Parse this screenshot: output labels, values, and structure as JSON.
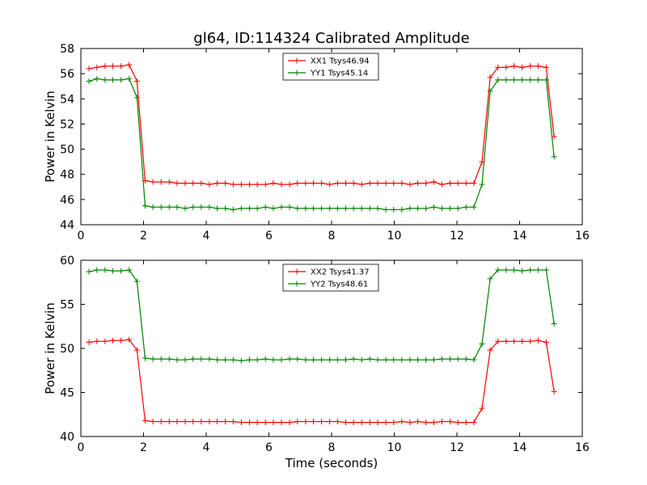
{
  "chart_data": [
    {
      "type": "line",
      "title": "gl64, ID:114324 Calibrated Amplitude",
      "xlabel": "",
      "ylabel": "Power in Kelvin",
      "xlim": [
        0,
        16
      ],
      "ylim": [
        44,
        58
      ],
      "xticks": [
        "0",
        "2",
        "4",
        "6",
        "8",
        "10",
        "12",
        "14",
        "16"
      ],
      "yticks": [
        "44",
        "46",
        "48",
        "50",
        "52",
        "54",
        "56",
        "58"
      ],
      "grid": false,
      "legend_position": "top-center",
      "x": [
        0.26,
        0.51,
        0.77,
        1.02,
        1.28,
        1.54,
        1.79,
        2.05,
        2.3,
        2.56,
        2.82,
        3.07,
        3.33,
        3.58,
        3.84,
        4.1,
        4.35,
        4.61,
        4.86,
        5.12,
        5.38,
        5.63,
        5.89,
        6.14,
        6.4,
        6.66,
        6.91,
        7.17,
        7.42,
        7.68,
        7.94,
        8.19,
        8.45,
        8.7,
        8.96,
        9.22,
        9.47,
        9.73,
        9.98,
        10.24,
        10.5,
        10.75,
        11.01,
        11.26,
        11.52,
        11.78,
        12.03,
        12.29,
        12.54,
        12.8,
        13.06,
        13.31,
        13.57,
        13.82,
        14.08,
        14.34,
        14.59,
        14.85,
        15.1
      ],
      "series": [
        {
          "name": "XX1 Tsys46.94",
          "color": "#ff0000",
          "values": [
            56.4,
            56.5,
            56.6,
            56.6,
            56.6,
            56.7,
            55.4,
            47.5,
            47.4,
            47.4,
            47.4,
            47.3,
            47.3,
            47.3,
            47.3,
            47.2,
            47.3,
            47.3,
            47.2,
            47.2,
            47.2,
            47.2,
            47.2,
            47.3,
            47.2,
            47.2,
            47.3,
            47.3,
            47.3,
            47.3,
            47.2,
            47.3,
            47.3,
            47.3,
            47.2,
            47.3,
            47.3,
            47.3,
            47.3,
            47.3,
            47.2,
            47.3,
            47.3,
            47.4,
            47.2,
            47.3,
            47.3,
            47.3,
            47.3,
            49.0,
            55.7,
            56.5,
            56.5,
            56.6,
            56.5,
            56.6,
            56.6,
            56.5,
            51.0
          ]
        },
        {
          "name": "YY1 Tsys45.14",
          "color": "#008000",
          "values": [
            55.4,
            55.6,
            55.5,
            55.5,
            55.5,
            55.6,
            54.1,
            45.5,
            45.4,
            45.4,
            45.4,
            45.4,
            45.3,
            45.4,
            45.4,
            45.4,
            45.3,
            45.3,
            45.2,
            45.3,
            45.3,
            45.3,
            45.4,
            45.3,
            45.4,
            45.4,
            45.3,
            45.3,
            45.3,
            45.3,
            45.3,
            45.3,
            45.3,
            45.3,
            45.3,
            45.3,
            45.3,
            45.2,
            45.2,
            45.2,
            45.3,
            45.3,
            45.3,
            45.4,
            45.3,
            45.3,
            45.3,
            45.4,
            45.4,
            47.2,
            54.6,
            55.5,
            55.5,
            55.5,
            55.5,
            55.5,
            55.5,
            55.5,
            49.4
          ]
        }
      ]
    },
    {
      "type": "line",
      "title": "",
      "xlabel": "Time (seconds)",
      "ylabel": "Power in Kelvin",
      "xlim": [
        0,
        16
      ],
      "ylim": [
        40,
        60
      ],
      "xticks": [
        "0",
        "2",
        "4",
        "6",
        "8",
        "10",
        "12",
        "14",
        "16"
      ],
      "yticks": [
        "40",
        "45",
        "50",
        "55",
        "60"
      ],
      "grid": false,
      "legend_position": "top-center",
      "x": [
        0.26,
        0.51,
        0.77,
        1.02,
        1.28,
        1.54,
        1.79,
        2.05,
        2.3,
        2.56,
        2.82,
        3.07,
        3.33,
        3.58,
        3.84,
        4.1,
        4.35,
        4.61,
        4.86,
        5.12,
        5.38,
        5.63,
        5.89,
        6.14,
        6.4,
        6.66,
        6.91,
        7.17,
        7.42,
        7.68,
        7.94,
        8.19,
        8.45,
        8.7,
        8.96,
        9.22,
        9.47,
        9.73,
        9.98,
        10.24,
        10.5,
        10.75,
        11.01,
        11.26,
        11.52,
        11.78,
        12.03,
        12.29,
        12.54,
        12.8,
        13.06,
        13.31,
        13.57,
        13.82,
        14.08,
        14.34,
        14.59,
        14.85,
        15.1
      ],
      "series": [
        {
          "name": "XX2 Tsys41.37",
          "color": "#ff0000",
          "values": [
            50.7,
            50.8,
            50.8,
            50.9,
            50.9,
            51.0,
            49.8,
            41.8,
            41.7,
            41.7,
            41.7,
            41.7,
            41.7,
            41.7,
            41.7,
            41.7,
            41.7,
            41.7,
            41.7,
            41.6,
            41.6,
            41.6,
            41.6,
            41.6,
            41.6,
            41.6,
            41.7,
            41.7,
            41.7,
            41.7,
            41.7,
            41.7,
            41.6,
            41.6,
            41.6,
            41.6,
            41.6,
            41.6,
            41.6,
            41.7,
            41.6,
            41.7,
            41.6,
            41.6,
            41.7,
            41.7,
            41.6,
            41.6,
            41.6,
            43.2,
            49.8,
            50.8,
            50.8,
            50.8,
            50.8,
            50.8,
            50.9,
            50.7,
            45.1
          ]
        },
        {
          "name": "YY2 Tsys48.61",
          "color": "#008000",
          "values": [
            58.7,
            58.9,
            58.9,
            58.8,
            58.8,
            58.9,
            57.6,
            48.9,
            48.8,
            48.8,
            48.8,
            48.7,
            48.7,
            48.8,
            48.8,
            48.8,
            48.7,
            48.7,
            48.7,
            48.6,
            48.7,
            48.7,
            48.8,
            48.7,
            48.7,
            48.8,
            48.8,
            48.7,
            48.7,
            48.7,
            48.7,
            48.7,
            48.7,
            48.8,
            48.7,
            48.8,
            48.7,
            48.7,
            48.7,
            48.7,
            48.7,
            48.7,
            48.7,
            48.7,
            48.8,
            48.8,
            48.8,
            48.8,
            48.7,
            50.5,
            57.9,
            58.9,
            58.9,
            58.9,
            58.8,
            58.9,
            58.9,
            58.9,
            52.8
          ]
        }
      ]
    }
  ]
}
